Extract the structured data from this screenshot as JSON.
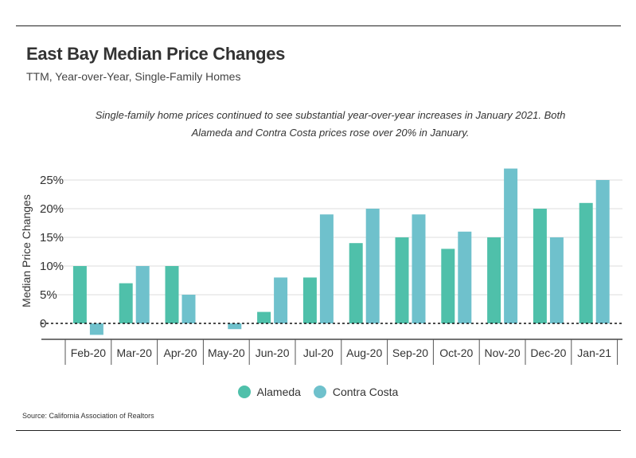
{
  "header": {
    "title": "East Bay Median Price Changes",
    "subtitle": "TTM, Year-over-Year, Single-Family Homes"
  },
  "annotation": "Single-family home prices continued to see substantial year-over-year increases in January 2021. Both Alameda and Contra Costa prices rose over 20% in January.",
  "source": "Source:  California Association of Realtors",
  "colors": {
    "alameda": "#4fc0aa",
    "contra_costa": "#6fc1cc"
  },
  "chart_data": {
    "type": "bar",
    "title": "East Bay Median Price Changes",
    "subtitle": "TTM, Year-over-Year, Single-Family Homes",
    "xlabel": "",
    "ylabel": "Median Price Changes",
    "categories": [
      "Feb-20",
      "Mar-20",
      "Apr-20",
      "May-20",
      "Jun-20",
      "Jul-20",
      "Aug-20",
      "Sep-20",
      "Oct-20",
      "Nov-20",
      "Dec-20",
      "Jan-21"
    ],
    "series": [
      {
        "name": "Alameda",
        "values": [
          10,
          7,
          10,
          0,
          2,
          8,
          14,
          15,
          13,
          15,
          20,
          21
        ]
      },
      {
        "name": "Contra Costa",
        "values": [
          -2,
          10,
          5,
          -1,
          8,
          19,
          20,
          19,
          16,
          27,
          15,
          25
        ]
      }
    ],
    "yticks": [
      {
        "value": 0,
        "label": "0"
      },
      {
        "value": 5,
        "label": "5%"
      },
      {
        "value": 10,
        "label": "10%"
      },
      {
        "value": 15,
        "label": "15%"
      },
      {
        "value": 20,
        "label": "20%"
      },
      {
        "value": 25,
        "label": "25%"
      }
    ],
    "ylim": [
      -3,
      27
    ],
    "grid": true,
    "legend": "bottom-center"
  }
}
